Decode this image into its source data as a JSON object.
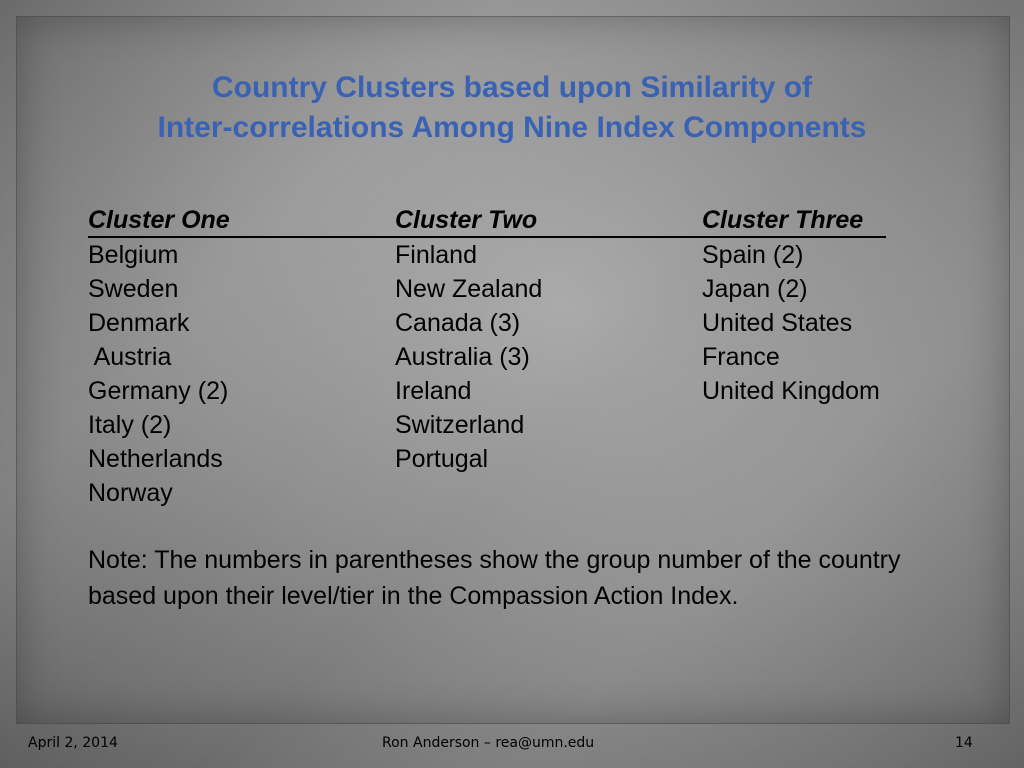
{
  "title": {
    "line1": "Country Clusters based upon Similarity of",
    "line2": "Inter-correlations Among Nine Index Components"
  },
  "clusters": [
    {
      "header": "Cluster One",
      "items": [
        "Belgium",
        "Sweden",
        "Denmark",
        " Austria",
        "Germany (2)",
        "Italy (2)",
        "Netherlands",
        "Norway"
      ]
    },
    {
      "header": "Cluster Two",
      "items": [
        "Finland",
        "New Zealand",
        "Canada (3)",
        "Australia (3)",
        "Ireland",
        "Switzerland",
        "Portugal"
      ]
    },
    {
      "header": "Cluster Three",
      "items": [
        "Spain (2)",
        "Japan (2)",
        "United States",
        "France",
        "United Kingdom"
      ]
    }
  ],
  "note": "Note: The numbers in parentheses show the group number of the country based upon their level/tier in the Compassion Action Index.",
  "footer": {
    "date": "April 2, 2014",
    "author": "Ron Anderson – rea@umn.edu",
    "page_number": "14"
  },
  "colors": {
    "title": "#3a62b4",
    "text": "#000000",
    "background": "#8c8c8c"
  }
}
